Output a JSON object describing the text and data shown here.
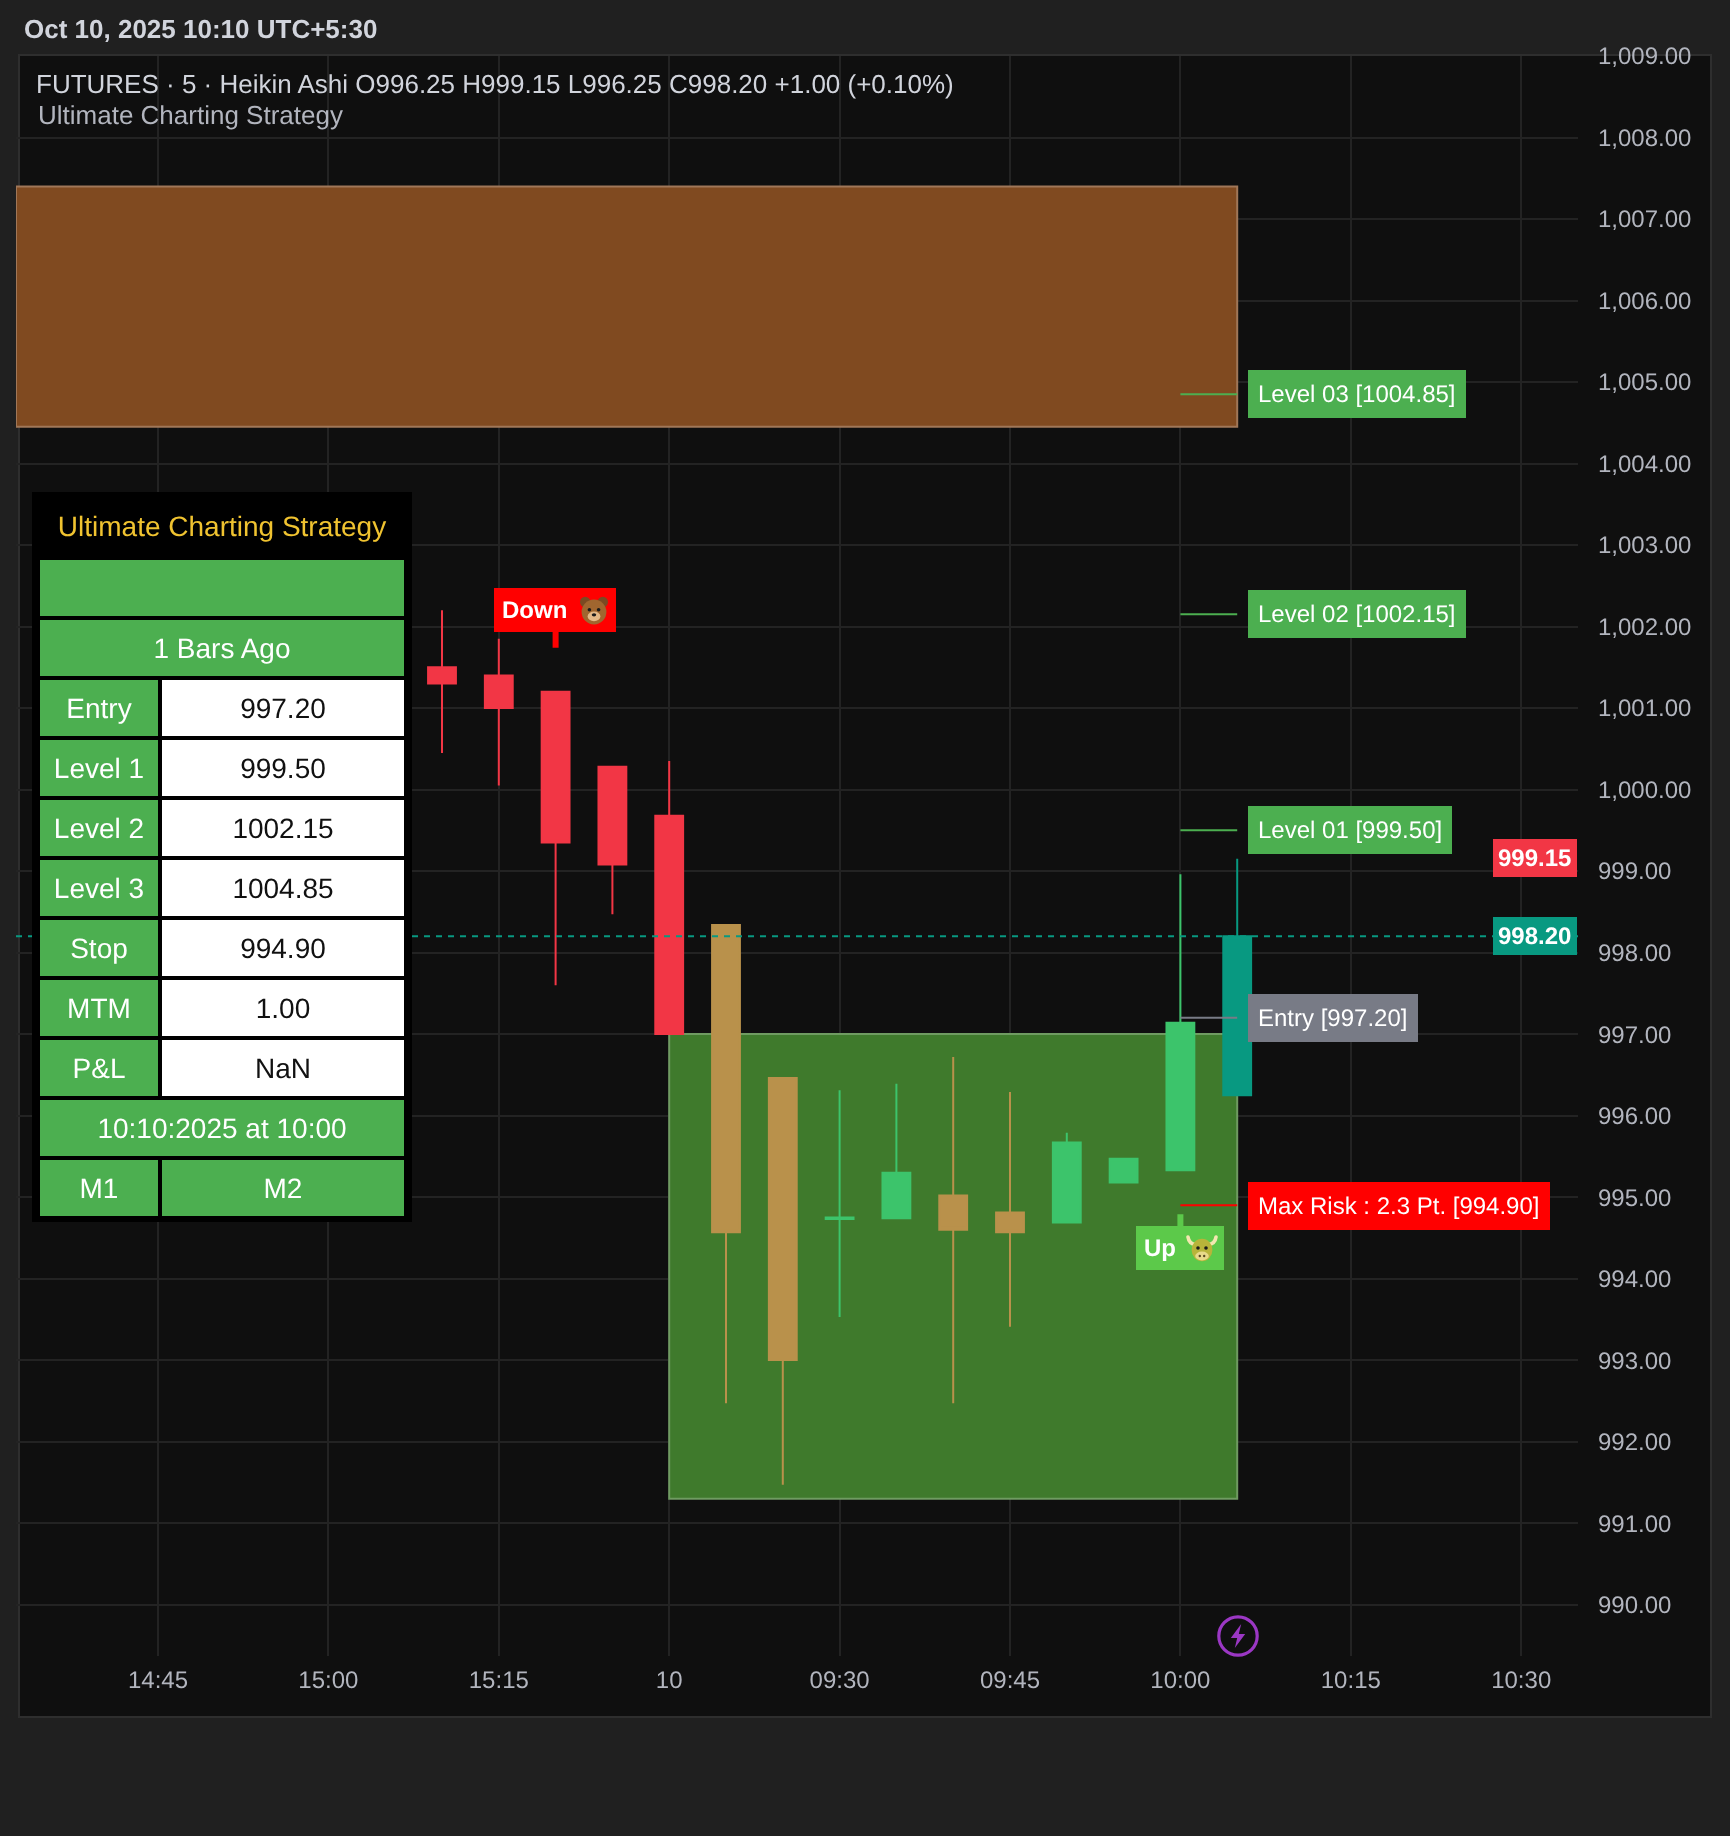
{
  "chart_data": [
    {
      "type": "candlestick",
      "title": "FUTURES · 5 · Heikin Ashi O996.25 H999.15 L996.25 C998.20 +1.00 (+0.10%)",
      "subtitle": "Ultimate Charting Strategy",
      "categories": [
        null,
        null,
        "14:45",
        null,
        null,
        "15:00",
        null,
        null,
        "15:15",
        null,
        null,
        "10",
        null,
        null,
        "09:30",
        null,
        null,
        "09:45",
        null,
        null,
        "10:00",
        null,
        null,
        "10:15",
        null,
        null,
        "10:30"
      ],
      "ohlc": [
        null,
        null,
        null,
        null,
        null,
        null,
        null,
        [
          1001.5,
          1002.2,
          1000.45,
          1001.3
        ],
        [
          1001.4,
          1001.85,
          1000.05,
          1001.0
        ],
        [
          1001.2,
          1001.2,
          997.6,
          999.35
        ],
        [
          1000.28,
          1000.28,
          998.47,
          999.08
        ],
        [
          999.68,
          1000.35,
          997.0,
          997.0
        ],
        [
          998.34,
          998.34,
          992.47,
          994.57
        ],
        [
          996.46,
          996.46,
          991.47,
          993.0
        ],
        [
          994.73,
          996.31,
          993.53,
          994.75
        ],
        [
          994.74,
          996.39,
          994.74,
          995.3
        ],
        [
          995.02,
          996.72,
          992.47,
          994.6
        ],
        [
          994.81,
          996.29,
          993.41,
          994.57
        ],
        [
          994.69,
          995.79,
          994.69,
          995.67
        ],
        [
          995.18,
          995.47,
          995.18,
          995.47
        ],
        [
          995.33,
          998.96,
          995.33,
          997.14
        ],
        [
          996.25,
          999.15,
          996.25,
          998.2
        ],
        null,
        null,
        null,
        null,
        null
      ],
      "colors": [
        null,
        null,
        null,
        null,
        null,
        null,
        null,
        "#f23645",
        "#f23645",
        "#f23645",
        "#f23645",
        "#f23645",
        "#b9914b",
        "#b9914b",
        "#3cc46b",
        "#3cc46b",
        "#b9914b",
        "#b9914b",
        "#3cc46b",
        "#3cc46b",
        "#3cc46b",
        "#089981",
        null,
        null,
        null,
        null,
        null
      ],
      "ylim": [
        989.37,
        1009.0
      ],
      "yticks": [
        {
          "value": 990,
          "label": "990.00"
        },
        {
          "value": 991,
          "label": "991.00"
        },
        {
          "value": 992,
          "label": "992.00"
        },
        {
          "value": 993,
          "label": "993.00"
        },
        {
          "value": 994,
          "label": "994.00"
        },
        {
          "value": 995,
          "label": "995.00"
        },
        {
          "value": 996,
          "label": "996.00"
        },
        {
          "value": 997,
          "label": "997.00"
        },
        {
          "value": 998,
          "label": "998.00"
        },
        {
          "value": 999,
          "label": "999.00"
        },
        {
          "value": 1000,
          "label": "1,000.00"
        },
        {
          "value": 1001,
          "label": "1,001.00"
        },
        {
          "value": 1002,
          "label": "1,002.00"
        },
        {
          "value": 1003,
          "label": "1,003.00"
        },
        {
          "value": 1004,
          "label": "1,004.00"
        },
        {
          "value": 1005,
          "label": "1,005.00"
        },
        {
          "value": 1006,
          "label": "1,006.00"
        },
        {
          "value": 1007,
          "label": "1,007.00"
        },
        {
          "value": 1008,
          "label": "1,008.00"
        },
        {
          "value": 1009,
          "label": "1,009.00"
        }
      ],
      "grid": true,
      "bands": [
        {
          "axis": "y",
          "from": 1004.45,
          "to": 1007.4,
          "color": "#804a20"
        },
        {
          "axis": "y",
          "from": 991.3,
          "to": 997.0,
          "color": "#3f7a2c"
        }
      ],
      "ref_lines": [
        {
          "axis": "y",
          "value": 1004.85,
          "label": "Level 03 [1004.85]",
          "color": "#4caf50"
        },
        {
          "axis": "y",
          "value": 1002.15,
          "label": "Level 02 [1002.15]",
          "color": "#4caf50"
        },
        {
          "axis": "y",
          "value": 999.5,
          "label": "Level 01 [999.50]",
          "color": "#4caf50"
        },
        {
          "axis": "y",
          "value": 997.2,
          "label": "Entry [997.20]",
          "color": "#787b86"
        },
        {
          "axis": "y",
          "value": 994.9,
          "label": "Max Risk : 2.3 Pt. [994.90]",
          "color": "#ff0000"
        },
        {
          "axis": "y",
          "value": 998.2,
          "label": "998.20",
          "color": "#089981",
          "line_style": "dotted"
        }
      ],
      "annotations": [
        "Oct 10, 2025 10:10 UTC+5:30",
        {
          "text": "Down",
          "y": 1001.2
        },
        {
          "text": "Up",
          "y": 995.33
        },
        "999.15",
        "Ultimate Charting Strategy",
        "1 Bars Ago",
        "Entry",
        "997.20",
        "Level 1",
        "999.50",
        "Level 2",
        "1002.15",
        "Level 3",
        "1004.85",
        "Stop",
        "994.90",
        "MTM",
        "1.00",
        "P&L",
        "NaN",
        "10:10:2025 at 10:00",
        "M1",
        "M2"
      ]
    }
  ]
}
